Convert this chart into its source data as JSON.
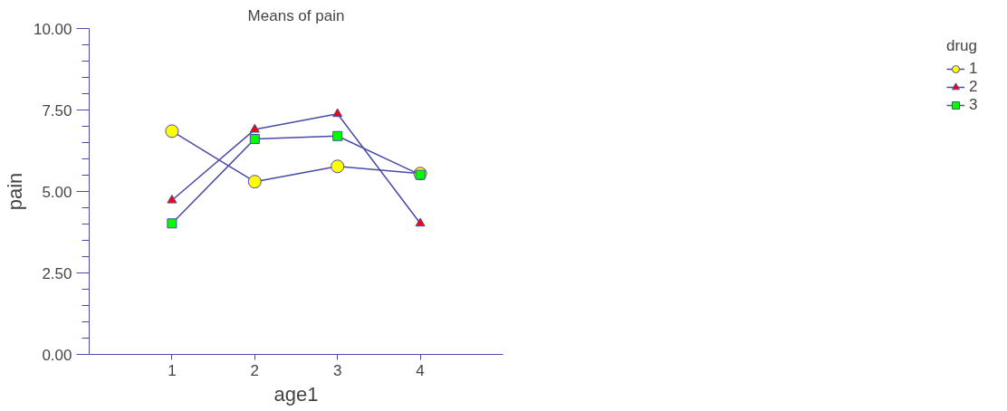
{
  "chart_data": {
    "type": "line",
    "title": "Means of pain",
    "xlabel": "age1",
    "ylabel": "pain",
    "legend_title": "drug",
    "x": [
      1,
      2,
      3,
      4
    ],
    "xlim": [
      0,
      5
    ],
    "xticks": [
      1,
      2,
      3,
      4
    ],
    "ylim": [
      0,
      10
    ],
    "yticks": [
      {
        "value": 0,
        "label": "0.00"
      },
      {
        "value": 2.5,
        "label": "2.50"
      },
      {
        "value": 5,
        "label": "5.00"
      },
      {
        "value": 7.5,
        "label": "7.50"
      },
      {
        "value": 10,
        "label": "10.00"
      }
    ],
    "grid": false,
    "legend": "top right",
    "series": [
      {
        "name": "1",
        "color": "#ffff00",
        "marker": "circle",
        "values": [
          6.85,
          5.3,
          5.77,
          5.55
        ]
      },
      {
        "name": "2",
        "color": "#ff0000",
        "marker": "triangle",
        "values": [
          4.73,
          6.9,
          7.38,
          4.02
        ]
      },
      {
        "name": "3",
        "color": "#00ff00",
        "marker": "square",
        "values": [
          4.02,
          6.61,
          6.7,
          5.51
        ]
      }
    ]
  }
}
